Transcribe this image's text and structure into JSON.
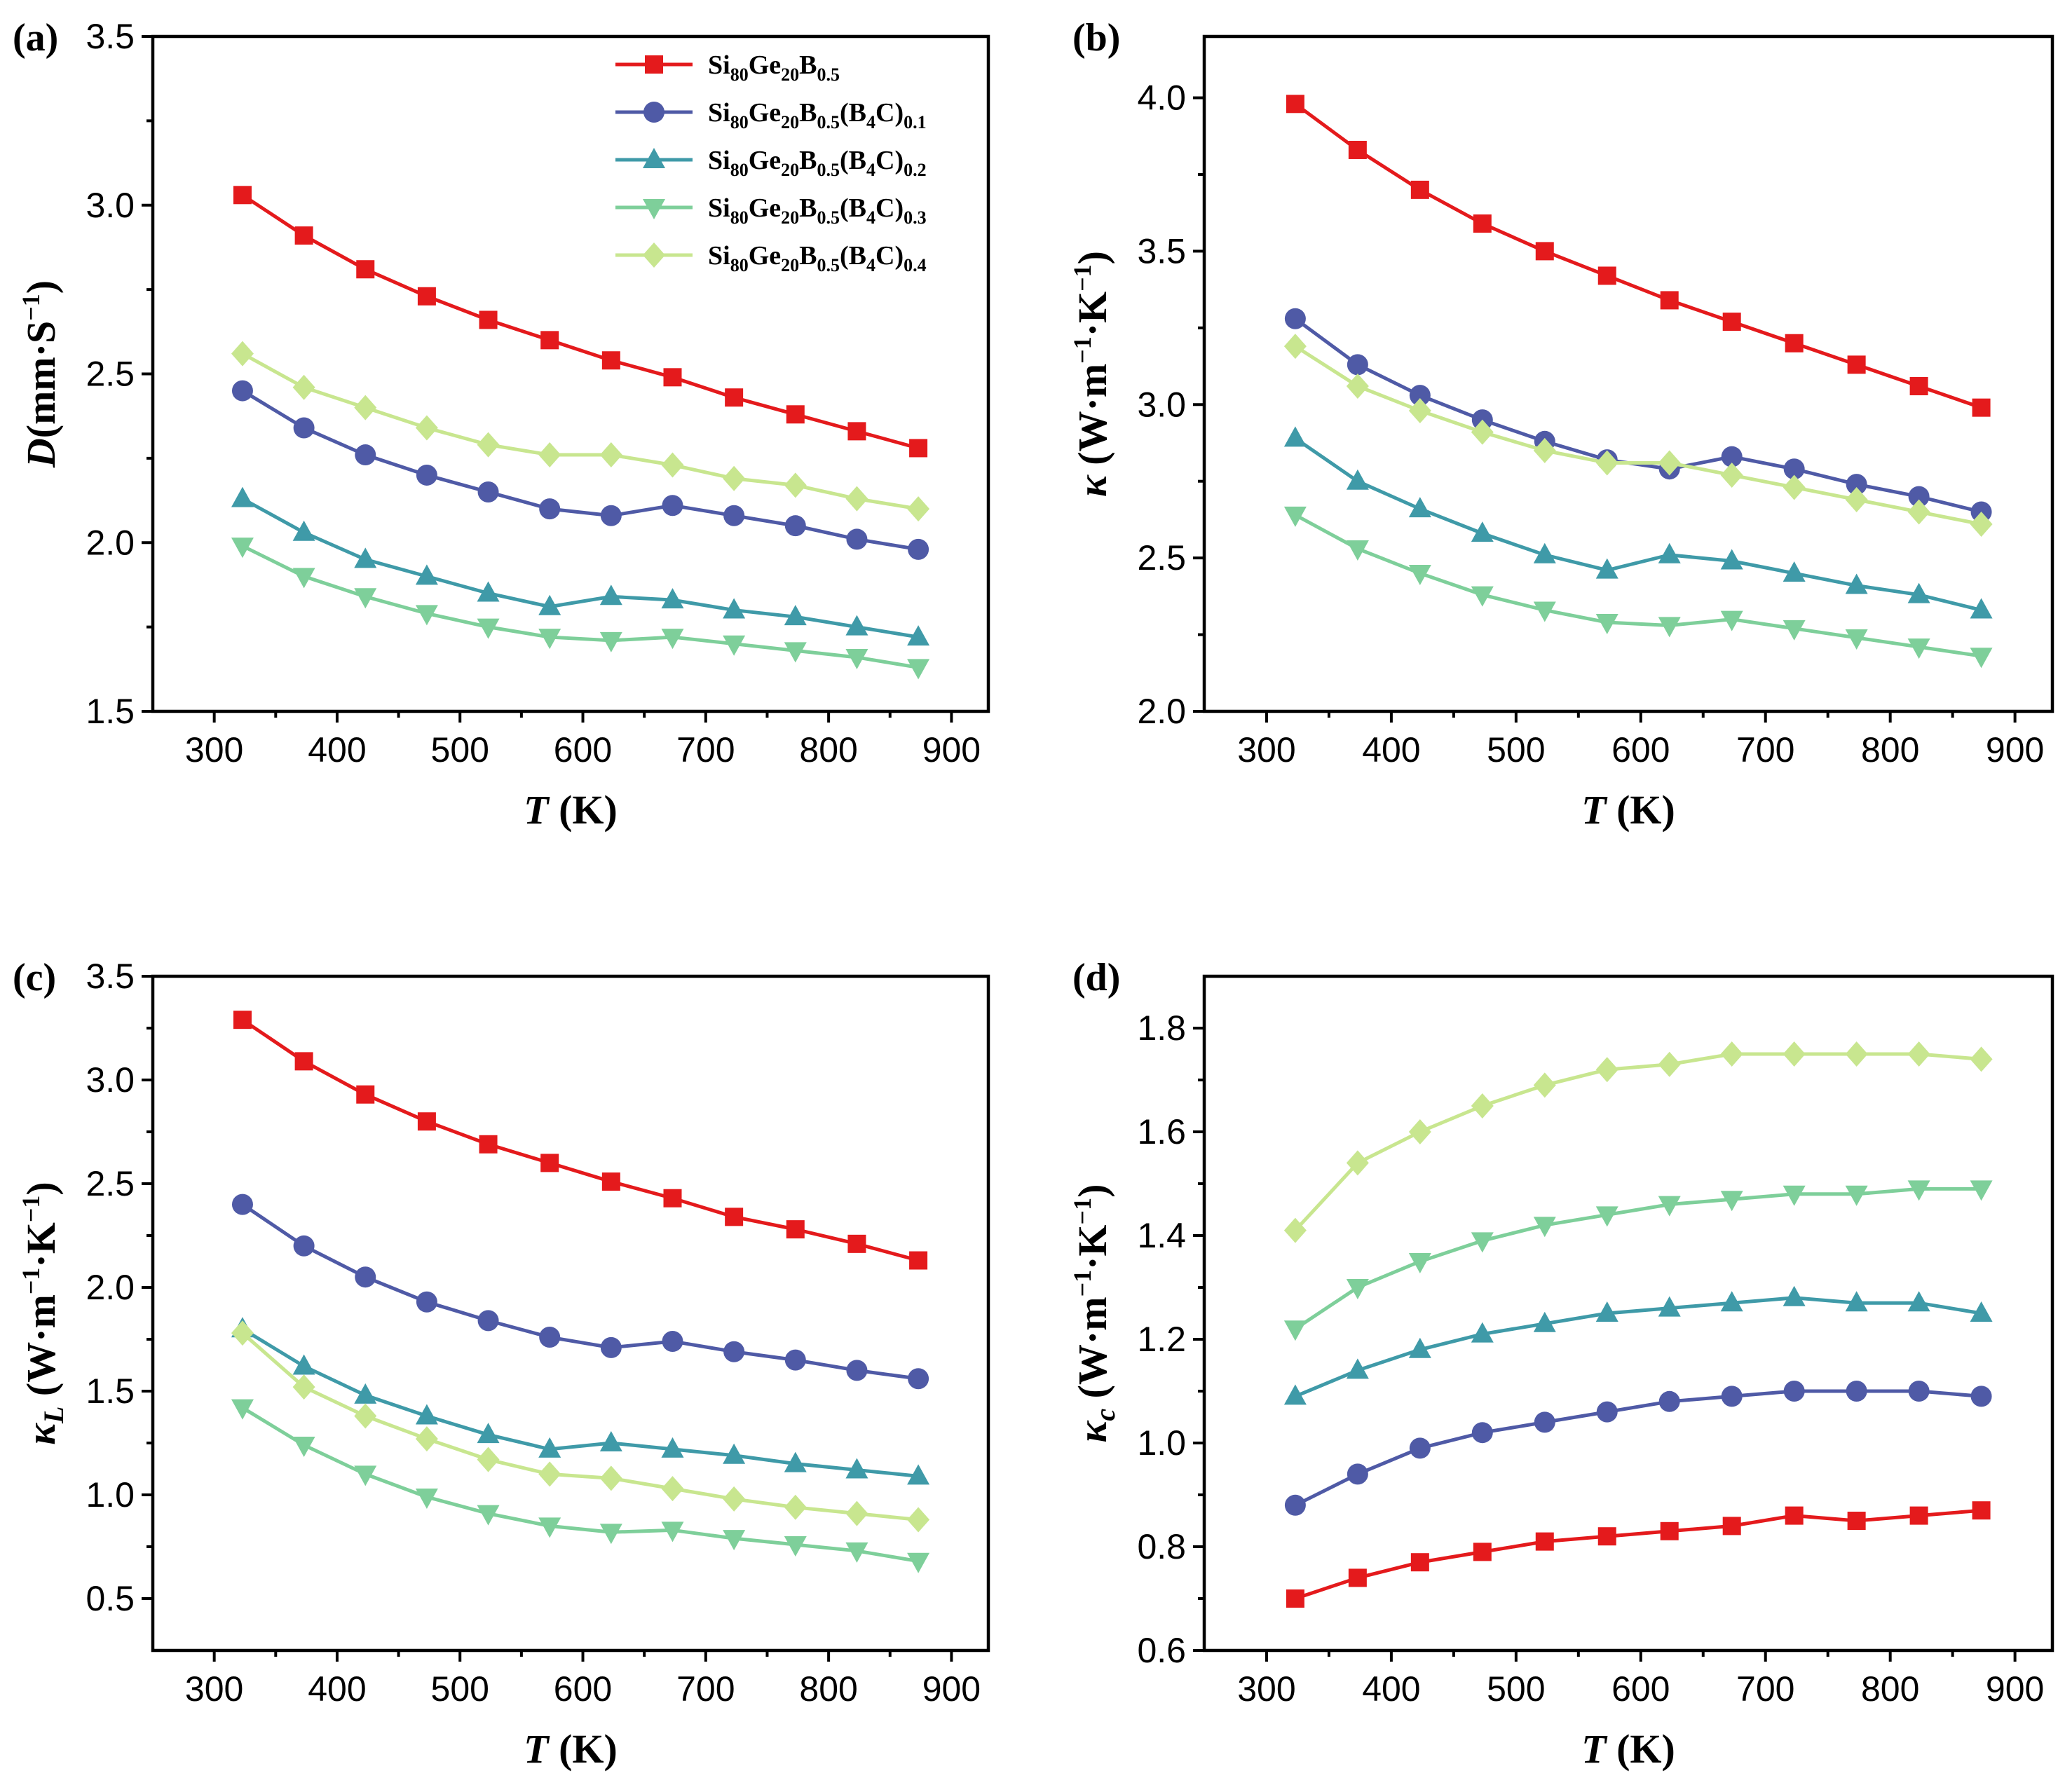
{
  "chart_data": [
    {
      "type": "line",
      "panel": "(a)",
      "xlabel_italic": "T",
      "xlabel_rest": " (K)",
      "ylabel_italic": "D",
      "ylabel_rest": "(mm·S",
      "ylabel_sup": "−1",
      "ylabel_end": ")",
      "xlim": [
        250,
        930
      ],
      "ylim": [
        1.5,
        3.5
      ],
      "xticks": [
        300,
        400,
        500,
        600,
        700,
        800,
        900
      ],
      "yticks": [
        "1.5",
        "2.0",
        "2.5",
        "3.0",
        "3.5"
      ],
      "x": [
        323,
        373,
        423,
        473,
        523,
        573,
        623,
        673,
        723,
        773,
        823,
        873
      ],
      "series": [
        {
          "name": "Si80Ge20B0.5",
          "values": [
            3.03,
            2.91,
            2.81,
            2.73,
            2.66,
            2.6,
            2.54,
            2.49,
            2.43,
            2.38,
            2.33,
            2.28
          ]
        },
        {
          "name": "Si80Ge20B0.5(B4C)0.1",
          "values": [
            2.45,
            2.34,
            2.26,
            2.2,
            2.15,
            2.1,
            2.08,
            2.11,
            2.08,
            2.05,
            2.01,
            1.98
          ]
        },
        {
          "name": "Si80Ge20B0.5(B4C)0.2",
          "values": [
            2.13,
            2.03,
            1.95,
            1.9,
            1.85,
            1.81,
            1.84,
            1.83,
            1.8,
            1.78,
            1.75,
            1.72
          ]
        },
        {
          "name": "Si80Ge20B0.5(B4C)0.3",
          "values": [
            1.99,
            1.9,
            1.84,
            1.79,
            1.75,
            1.72,
            1.71,
            1.72,
            1.7,
            1.68,
            1.66,
            1.63
          ]
        },
        {
          "name": "Si80Ge20B0.5(B4C)0.4",
          "values": [
            2.56,
            2.46,
            2.4,
            2.34,
            2.29,
            2.26,
            2.26,
            2.23,
            2.19,
            2.17,
            2.13,
            2.1
          ]
        }
      ]
    },
    {
      "type": "line",
      "panel": "(b)",
      "xlabel_italic": "T",
      "xlabel_rest": " (K)",
      "ylabel_italic": "κ",
      "ylabel_rest": " (W·m",
      "ylabel_sup": "−1",
      "ylabel_end": "·K",
      "ylabel_sup2": "−1",
      "ylabel_close": ")",
      "xlim": [
        250,
        930
      ],
      "ylim": [
        2.0,
        4.2
      ],
      "xticks": [
        300,
        400,
        500,
        600,
        700,
        800,
        900
      ],
      "yticks": [
        "2.0",
        "2.5",
        "3.0",
        "3.5",
        "4.0"
      ],
      "x": [
        323,
        373,
        423,
        473,
        523,
        573,
        623,
        673,
        723,
        773,
        823,
        873
      ],
      "series": [
        {
          "name": "Si80Ge20B0.5",
          "values": [
            3.98,
            3.83,
            3.7,
            3.59,
            3.5,
            3.42,
            3.34,
            3.27,
            3.2,
            3.13,
            3.06,
            2.99
          ]
        },
        {
          "name": "Si80Ge20B0.5(B4C)0.1",
          "values": [
            3.28,
            3.13,
            3.03,
            2.95,
            2.88,
            2.82,
            2.79,
            2.83,
            2.79,
            2.74,
            2.7,
            2.65
          ]
        },
        {
          "name": "Si80Ge20B0.5(B4C)0.2",
          "values": [
            2.89,
            2.75,
            2.66,
            2.58,
            2.51,
            2.46,
            2.51,
            2.49,
            2.45,
            2.41,
            2.38,
            2.33
          ]
        },
        {
          "name": "Si80Ge20B0.5(B4C)0.3",
          "values": [
            2.64,
            2.53,
            2.45,
            2.38,
            2.33,
            2.29,
            2.28,
            2.3,
            2.27,
            2.24,
            2.21,
            2.18
          ]
        },
        {
          "name": "Si80Ge20B0.5(B4C)0.4",
          "values": [
            3.19,
            3.06,
            2.98,
            2.91,
            2.85,
            2.81,
            2.81,
            2.77,
            2.73,
            2.69,
            2.65,
            2.61
          ]
        }
      ]
    },
    {
      "type": "line",
      "panel": "(c)",
      "xlabel_italic": "T",
      "xlabel_rest": " (K)",
      "ylabel_italic": "κ",
      "ylabel_sub": "L",
      "ylabel_rest": " (W·m",
      "ylabel_sup": "−1",
      "ylabel_end": "·K",
      "ylabel_sup2": "−1",
      "ylabel_close": ")",
      "xlim": [
        250,
        930
      ],
      "ylim": [
        0.25,
        3.5
      ],
      "xticks": [
        300,
        400,
        500,
        600,
        700,
        800,
        900
      ],
      "yticks": [
        "0.5",
        "1.0",
        "1.5",
        "2.0",
        "2.5",
        "3.0",
        "3.5"
      ],
      "x": [
        323,
        373,
        423,
        473,
        523,
        573,
        623,
        673,
        723,
        773,
        823,
        873
      ],
      "series": [
        {
          "name": "Si80Ge20B0.5",
          "values": [
            3.29,
            3.09,
            2.93,
            2.8,
            2.69,
            2.6,
            2.51,
            2.43,
            2.34,
            2.28,
            2.21,
            2.13
          ]
        },
        {
          "name": "Si80Ge20B0.5(B4C)0.1",
          "values": [
            2.4,
            2.2,
            2.05,
            1.93,
            1.84,
            1.76,
            1.71,
            1.74,
            1.69,
            1.65,
            1.6,
            1.56
          ]
        },
        {
          "name": "Si80Ge20B0.5(B4C)0.2",
          "values": [
            1.8,
            1.62,
            1.48,
            1.38,
            1.29,
            1.22,
            1.25,
            1.22,
            1.19,
            1.15,
            1.12,
            1.09
          ]
        },
        {
          "name": "Si80Ge20B0.5(B4C)0.3",
          "values": [
            1.42,
            1.24,
            1.1,
            0.99,
            0.91,
            0.85,
            0.82,
            0.83,
            0.79,
            0.76,
            0.73,
            0.68
          ]
        },
        {
          "name": "Si80Ge20B0.5(B4C)0.4",
          "values": [
            1.78,
            1.52,
            1.38,
            1.27,
            1.17,
            1.1,
            1.08,
            1.03,
            0.98,
            0.94,
            0.91,
            0.88
          ]
        }
      ]
    },
    {
      "type": "line",
      "panel": "(d)",
      "xlabel_italic": "T",
      "xlabel_rest": " (K)",
      "ylabel_italic": "κ",
      "ylabel_sub": "c",
      "ylabel_rest": " (W·m",
      "ylabel_sup": "−1",
      "ylabel_end": "·K",
      "ylabel_sup2": "−1",
      "ylabel_close": ")",
      "xlim": [
        250,
        930
      ],
      "ylim": [
        0.6,
        1.9
      ],
      "xticks": [
        300,
        400,
        500,
        600,
        700,
        800,
        900
      ],
      "yticks": [
        "0.6",
        "0.8",
        "1.0",
        "1.2",
        "1.4",
        "1.6",
        "1.8"
      ],
      "x": [
        323,
        373,
        423,
        473,
        523,
        573,
        623,
        673,
        723,
        773,
        823,
        873
      ],
      "series": [
        {
          "name": "Si80Ge20B0.5",
          "values": [
            0.7,
            0.74,
            0.77,
            0.79,
            0.81,
            0.82,
            0.83,
            0.84,
            0.86,
            0.85,
            0.86,
            0.87
          ]
        },
        {
          "name": "Si80Ge20B0.5(B4C)0.1",
          "values": [
            0.88,
            0.94,
            0.99,
            1.02,
            1.04,
            1.06,
            1.08,
            1.09,
            1.1,
            1.1,
            1.1,
            1.09
          ]
        },
        {
          "name": "Si80Ge20B0.5(B4C)0.2",
          "values": [
            1.09,
            1.14,
            1.18,
            1.21,
            1.23,
            1.25,
            1.26,
            1.27,
            1.28,
            1.27,
            1.27,
            1.25
          ]
        },
        {
          "name": "Si80Ge20B0.5(B4C)0.3",
          "values": [
            1.22,
            1.3,
            1.35,
            1.39,
            1.42,
            1.44,
            1.46,
            1.47,
            1.48,
            1.48,
            1.49,
            1.49
          ]
        },
        {
          "name": "Si80Ge20B0.5(B4C)0.4",
          "values": [
            1.41,
            1.54,
            1.6,
            1.65,
            1.69,
            1.72,
            1.73,
            1.75,
            1.75,
            1.75,
            1.75,
            1.74
          ]
        }
      ]
    }
  ],
  "legend": {
    "entries": [
      {
        "base": "Si",
        "s1": "80",
        "mid": "Ge",
        "s2": "20",
        "mid2": "B",
        "s3": "0.5",
        "tail": "",
        "s4": ""
      },
      {
        "base": "Si",
        "s1": "80",
        "mid": "Ge",
        "s2": "20",
        "mid2": "B",
        "s3": "0.5",
        "tail": "(B4C)",
        "s4": "0.1"
      },
      {
        "base": "Si",
        "s1": "80",
        "mid": "Ge",
        "s2": "20",
        "mid2": "B",
        "s3": "0.5",
        "tail": "(B4C)",
        "s4": "0.2"
      },
      {
        "base": "Si",
        "s1": "80",
        "mid": "Ge",
        "s2": "20",
        "mid2": "B",
        "s3": "0.5",
        "tail": "(B4C)",
        "s4": "0.3"
      },
      {
        "base": "Si",
        "s1": "80",
        "mid": "Ge",
        "s2": "20",
        "mid2": "B",
        "s3": "0.5",
        "tail": "(B4C)",
        "s4": "0.4"
      }
    ]
  },
  "series_style": [
    {
      "color": "#e41a1c",
      "marker": "square"
    },
    {
      "color": "#4f5aa6",
      "marker": "circle"
    },
    {
      "color": "#3f9aa8",
      "marker": "triangle-up"
    },
    {
      "color": "#7ecf9a",
      "marker": "triangle-down"
    },
    {
      "color": "#c8e68f",
      "marker": "diamond"
    }
  ]
}
